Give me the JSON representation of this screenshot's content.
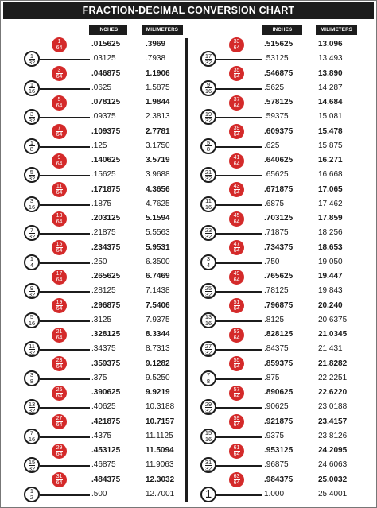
{
  "title": "FRACTION-DECIMAL CONVERSION CHART",
  "headers": {
    "inches": "INCHES",
    "millimeters": "MILIMETERS"
  },
  "colors": {
    "odd_badge": "#d42a2a",
    "even_badge": "#ffffff",
    "header_bg": "#1c1c1c"
  },
  "left_rows": [
    {
      "num": "1",
      "den": "64",
      "inches": ".015625",
      "mm": ".3969"
    },
    {
      "num": "1",
      "den": "32",
      "inches": ".03125",
      "mm": ".7938"
    },
    {
      "num": "3",
      "den": "64",
      "inches": ".046875",
      "mm": "1.1906"
    },
    {
      "num": "1",
      "den": "16",
      "inches": ".0625",
      "mm": "1.5875"
    },
    {
      "num": "5",
      "den": "64",
      "inches": ".078125",
      "mm": "1.9844"
    },
    {
      "num": "3",
      "den": "32",
      "inches": ".09375",
      "mm": "2.3813"
    },
    {
      "num": "7",
      "den": "64",
      "inches": ".109375",
      "mm": "2.7781"
    },
    {
      "num": "1",
      "den": "8",
      "inches": ".125",
      "mm": "3.1750"
    },
    {
      "num": "9",
      "den": "64",
      "inches": ".140625",
      "mm": "3.5719"
    },
    {
      "num": "5",
      "den": "32",
      "inches": ".15625",
      "mm": "3.9688"
    },
    {
      "num": "11",
      "den": "64",
      "inches": ".171875",
      "mm": "4.3656"
    },
    {
      "num": "3",
      "den": "16",
      "inches": ".1875",
      "mm": "4.7625"
    },
    {
      "num": "13",
      "den": "64",
      "inches": ".203125",
      "mm": "5.1594"
    },
    {
      "num": "7",
      "den": "32",
      "inches": ".21875",
      "mm": "5.5563"
    },
    {
      "num": "15",
      "den": "64",
      "inches": ".234375",
      "mm": "5.9531"
    },
    {
      "num": "1",
      "den": "4",
      "inches": ".250",
      "mm": "6.3500"
    },
    {
      "num": "17",
      "den": "64",
      "inches": ".265625",
      "mm": "6.7469"
    },
    {
      "num": "9",
      "den": "32",
      "inches": ".28125",
      "mm": "7.1438"
    },
    {
      "num": "19",
      "den": "64",
      "inches": ".296875",
      "mm": "7.5406"
    },
    {
      "num": "5",
      "den": "16",
      "inches": ".3125",
      "mm": "7.9375"
    },
    {
      "num": "21",
      "den": "64",
      "inches": ".328125",
      "mm": "8.3344"
    },
    {
      "num": "11",
      "den": "32",
      "inches": ".34375",
      "mm": "8.7313"
    },
    {
      "num": "23",
      "den": "64",
      "inches": ".359375",
      "mm": "9.1282"
    },
    {
      "num": "3",
      "den": "8",
      "inches": ".375",
      "mm": "9.5250"
    },
    {
      "num": "25",
      "den": "64",
      "inches": ".390625",
      "mm": "9.9219"
    },
    {
      "num": "13",
      "den": "32",
      "inches": ".40625",
      "mm": "10.3188"
    },
    {
      "num": "27",
      "den": "64",
      "inches": ".421875",
      "mm": "10.7157"
    },
    {
      "num": "7",
      "den": "16",
      "inches": ".4375",
      "mm": "11.1125"
    },
    {
      "num": "29",
      "den": "64",
      "inches": ".453125",
      "mm": "11.5094"
    },
    {
      "num": "15",
      "den": "32",
      "inches": ".46875",
      "mm": "11.9063"
    },
    {
      "num": "31",
      "den": "64",
      "inches": ".484375",
      "mm": "12.3032"
    },
    {
      "num": "1",
      "den": "2",
      "inches": ".500",
      "mm": "12.7001"
    }
  ],
  "right_rows": [
    {
      "num": "33",
      "den": "64",
      "inches": ".515625",
      "mm": "13.096"
    },
    {
      "num": "17",
      "den": "32",
      "inches": ".53125",
      "mm": "13.493"
    },
    {
      "num": "35",
      "den": "64",
      "inches": ".546875",
      "mm": "13.890"
    },
    {
      "num": "9",
      "den": "16",
      "inches": ".5625",
      "mm": "14.287"
    },
    {
      "num": "37",
      "den": "64",
      "inches": ".578125",
      "mm": "14.684"
    },
    {
      "num": "19",
      "den": "32",
      "inches": ".59375",
      "mm": "15.081"
    },
    {
      "num": "39",
      "den": "64",
      "inches": ".609375",
      "mm": "15.478"
    },
    {
      "num": "5",
      "den": "8",
      "inches": ".625",
      "mm": "15.875"
    },
    {
      "num": "41",
      "den": "64",
      "inches": ".640625",
      "mm": "16.271"
    },
    {
      "num": "21",
      "den": "32",
      "inches": ".65625",
      "mm": "16.668"
    },
    {
      "num": "43",
      "den": "64",
      "inches": ".671875",
      "mm": "17.065"
    },
    {
      "num": "11",
      "den": "16",
      "inches": ".6875",
      "mm": "17.462"
    },
    {
      "num": "45",
      "den": "64",
      "inches": ".703125",
      "mm": "17.859"
    },
    {
      "num": "23",
      "den": "32",
      "inches": ".71875",
      "mm": "18.256"
    },
    {
      "num": "47",
      "den": "64",
      "inches": ".734375",
      "mm": "18.653"
    },
    {
      "num": "3",
      "den": "4",
      "inches": ".750",
      "mm": "19.050"
    },
    {
      "num": "49",
      "den": "64",
      "inches": ".765625",
      "mm": "19.447"
    },
    {
      "num": "25",
      "den": "32",
      "inches": ".78125",
      "mm": "19.843"
    },
    {
      "num": "51",
      "den": "64",
      "inches": ".796875",
      "mm": "20.240"
    },
    {
      "num": "13",
      "den": "16",
      "inches": ".8125",
      "mm": "20.6375"
    },
    {
      "num": "53",
      "den": "64",
      "inches": ".828125",
      "mm": "21.0345"
    },
    {
      "num": "27",
      "den": "32",
      "inches": ".84375",
      "mm": "21.431"
    },
    {
      "num": "55",
      "den": "64",
      "inches": ".859375",
      "mm": "21.8282"
    },
    {
      "num": "7",
      "den": "8",
      "inches": ".875",
      "mm": "22.2251"
    },
    {
      "num": "57",
      "den": "64",
      "inches": ".890625",
      "mm": "22.6220"
    },
    {
      "num": "29",
      "den": "32",
      "inches": ".90625",
      "mm": "23.0188"
    },
    {
      "num": "59",
      "den": "64",
      "inches": ".921875",
      "mm": "23.4157"
    },
    {
      "num": "15",
      "den": "16",
      "inches": ".9375",
      "mm": "23.8126"
    },
    {
      "num": "61",
      "den": "64",
      "inches": ".953125",
      "mm": "24.2095"
    },
    {
      "num": "31",
      "den": "32",
      "inches": ".96875",
      "mm": "24.6063"
    },
    {
      "num": "63",
      "den": "64",
      "inches": ".984375",
      "mm": "25.0032"
    },
    {
      "num": "1",
      "den": "",
      "inches": "1.000",
      "mm": "25.4001"
    }
  ]
}
